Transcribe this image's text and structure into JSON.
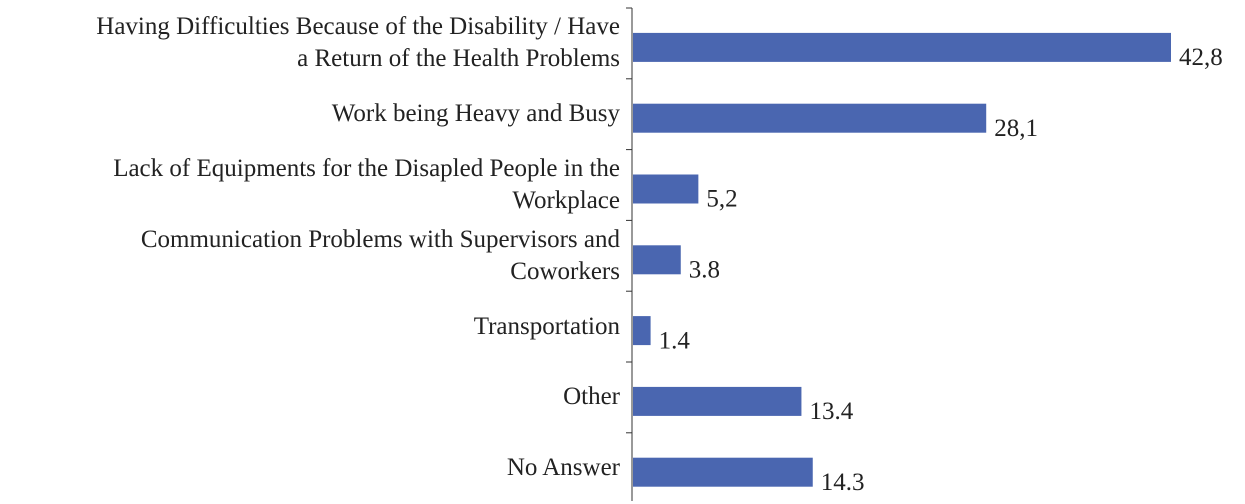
{
  "chart_data": {
    "type": "bar",
    "orientation": "horizontal",
    "categories": [
      "Having Difficulties Because of the Disability / Have\na Return of the Health Problems",
      "Work being Heavy and Busy",
      "Lack of Equipments for the Disapled People in the\nWorkplace",
      "Communication Problems with Supervisors and\nCoworkers",
      "Transportation",
      "Other",
      "No Answer"
    ],
    "values": [
      42.8,
      28.1,
      5.2,
      3.8,
      1.4,
      13.4,
      14.3
    ],
    "value_labels": [
      "42,8",
      "28,1",
      "5,2",
      "3.8",
      "1.4",
      "13.4",
      "14.3"
    ],
    "color": "#4a66b0"
  }
}
